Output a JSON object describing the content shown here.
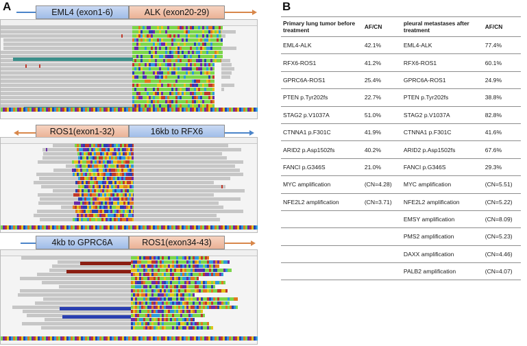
{
  "panel_a": {
    "label": "A",
    "track1": {
      "left_gene": "EML4 (exon1-6)",
      "right_gene": "ALK (exon20-29)"
    },
    "track2": {
      "left_gene": "ROS1(exon1-32)",
      "right_gene": "16kb to RFX6"
    },
    "track3": {
      "left_gene": "4kb to GPRC6A",
      "right_gene": "ROS1(exon34-43)"
    }
  },
  "panel_b": {
    "label": "B",
    "headers": [
      "Primary lung tumor before treatment",
      "AF/CN",
      "pleural metastases after treatment",
      "AF/CN"
    ],
    "rows": [
      [
        "EML4-ALK",
        "42.1%",
        "EML4-ALK",
        "77.4%"
      ],
      [
        "RFX6-ROS1",
        "41.2%",
        "RFX6-ROS1",
        "60.1%"
      ],
      [
        "GPRC6A-ROS1",
        "25.4%",
        "GPRC6A-ROS1",
        "24.9%"
      ],
      [
        "PTEN   p.Tyr202fs",
        "22.7%",
        "PTEN   p.Tyr202fs",
        "38.8%"
      ],
      [
        "STAG2 p.V1037A",
        "51.0%",
        "STAG2 p.V1037A",
        "82.8%"
      ],
      [
        "CTNNA1 p.F301C",
        "41.9%",
        "CTNNA1 p.F301C",
        "41.6%"
      ],
      [
        "ARID2   p.Asp1502fs",
        "40.2%",
        "ARID2   p.Asp1502fs",
        "67.6%"
      ],
      [
        "FANCI p.G346S",
        "21.0%",
        "FANCI p.G346S",
        "29.3%"
      ],
      [
        "MYC amplification",
        "(CN=4.28)",
        "MYC amplification",
        "(CN=5.51)"
      ],
      [
        "NFE2L2 amplification",
        "(CN=3.71)",
        "NFE2L2 amplification",
        "(CN=5.22)"
      ],
      [
        "",
        "",
        "EMSY amplification",
        "(CN=8.09)"
      ],
      [
        "",
        "",
        "PMS2 amplification",
        "(CN=5.23)"
      ],
      [
        "",
        "",
        "DAXX amplification",
        "(CN=4.46)"
      ],
      [
        "",
        "",
        "PALB2 amplification",
        "(CN=4.07)"
      ]
    ]
  },
  "colors": {
    "read_gray": "#c6c6c6",
    "arrow_blue": "#4a84c9",
    "arrow_orange": "#d8874a",
    "green": "#7bd64a",
    "purple": "#6a2aa8",
    "red": "#c0392b",
    "yellow": "#e3c21a",
    "blue": "#2a3fb0",
    "brown": "#8b1e12",
    "teal": "#3b8f8a"
  }
}
